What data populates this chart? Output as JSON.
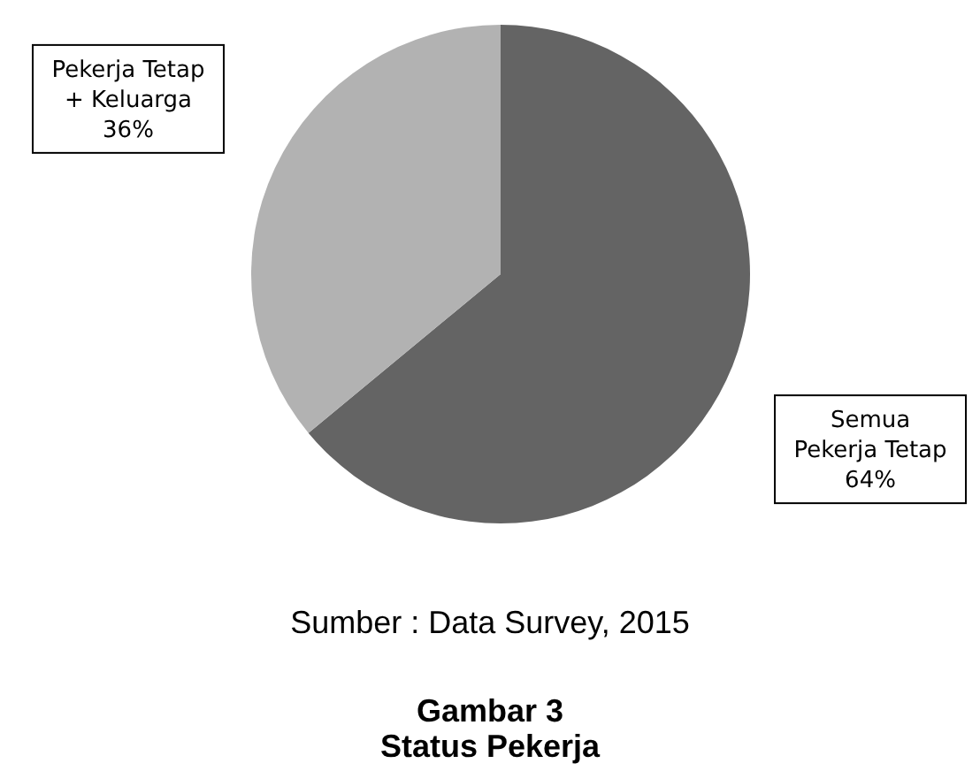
{
  "chart_data": {
    "type": "pie",
    "title": "Gambar 3",
    "subtitle": "Status Pekerja",
    "annotations": [
      "Sumber : Data Survey, 2015"
    ],
    "categories": [
      "Semua Pekerja Tetap",
      "Pekerja Tetap + Keluarga"
    ],
    "values": [
      64,
      36
    ],
    "colors": [
      "#646464",
      "#b2b2b2"
    ],
    "value_labels": [
      "64%",
      "36%"
    ]
  }
}
